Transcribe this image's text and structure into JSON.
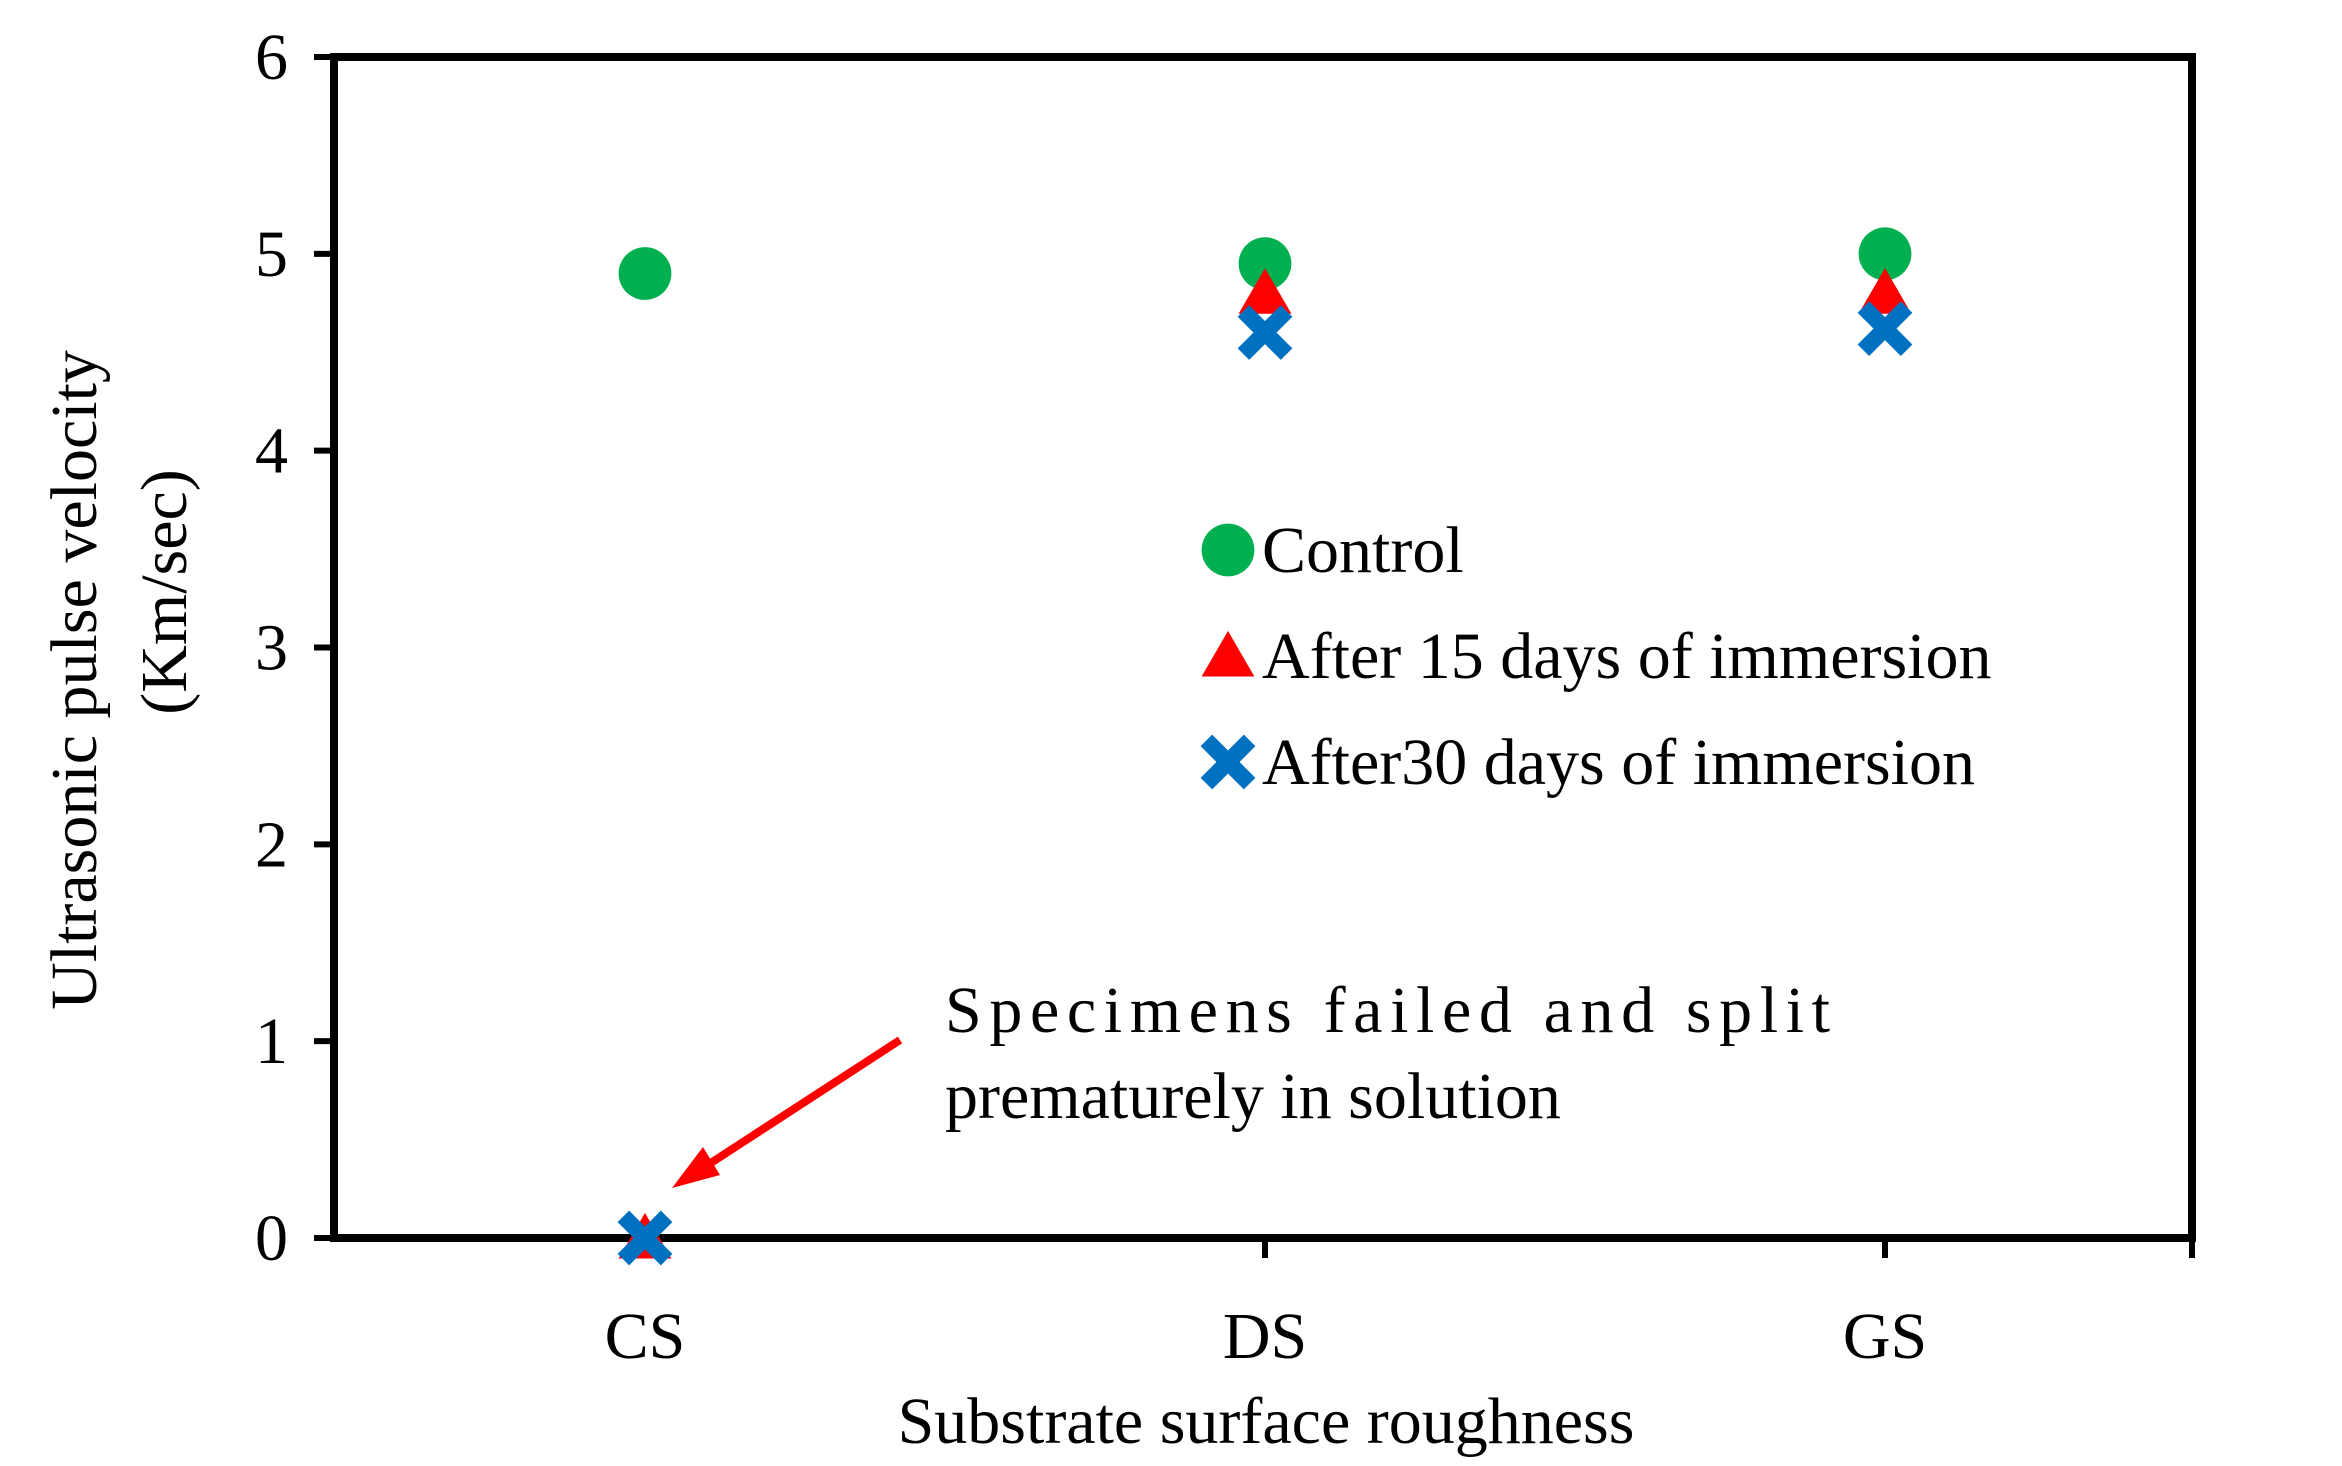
{
  "chart_data": {
    "type": "scatter",
    "title": "",
    "xlabel": "Substrate surface roughness",
    "ylabel": [
      "Ultrasonic pulse velocity",
      "(Km/sec)"
    ],
    "categories": [
      "CS",
      "DS",
      "GS"
    ],
    "ylim": [
      0,
      6
    ],
    "yticks": [
      "0",
      "1",
      "2",
      "3",
      "4",
      "5",
      "6"
    ],
    "grid": false,
    "legend_position": "center-right",
    "series": [
      {
        "name": "Control",
        "marker": "circle",
        "color": "#00B050",
        "values": [
          4.9,
          4.95,
          5.0
        ]
      },
      {
        "name": "After 15 days of immersion",
        "marker": "triangle",
        "color": "#FF0000",
        "values": [
          0,
          4.8,
          4.8
        ]
      },
      {
        "name": "After30 days of immersion",
        "marker": "x",
        "color": "#0070C0",
        "values": [
          0,
          4.6,
          4.62
        ]
      }
    ],
    "annotation": {
      "lines": [
        "Specimens failed and split",
        "prematurely in solution"
      ],
      "arrow_color": "#FF0000",
      "points_to": {
        "category": "CS",
        "value": 0
      }
    }
  }
}
